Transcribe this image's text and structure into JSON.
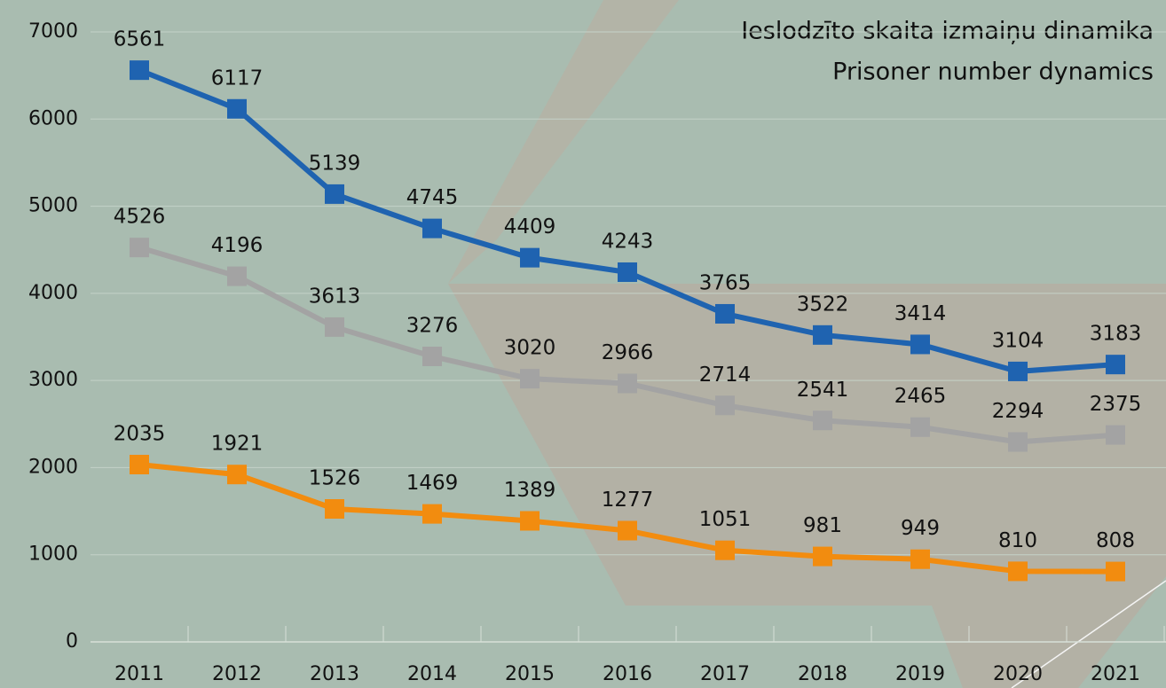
{
  "chart_data": {
    "type": "line",
    "title": "Ieslodzīto skaita izmaiņu dinamika",
    "subtitle": "Prisoner number dynamics",
    "categories": [
      "2011",
      "2012",
      "2013",
      "2014",
      "2015",
      "2016",
      "2017",
      "2018",
      "2019",
      "2020",
      "2021"
    ],
    "series": [
      {
        "color": "#1f63b0",
        "values": [
          6561,
          6117,
          5139,
          4745,
          4409,
          4243,
          3765,
          3522,
          3414,
          3104,
          3183
        ]
      },
      {
        "color": "#a3a3a3",
        "values": [
          4526,
          4196,
          3613,
          3276,
          3020,
          2966,
          2714,
          2541,
          2465,
          2294,
          2375
        ]
      },
      {
        "color": "#f28c0f",
        "values": [
          2035,
          1921,
          1526,
          1469,
          1389,
          1277,
          1051,
          981,
          949,
          810,
          808
        ]
      }
    ],
    "ylim": [
      0,
      7000
    ],
    "yticks": [
      0,
      1000,
      2000,
      3000,
      4000,
      5000,
      6000,
      7000
    ],
    "grid": true
  }
}
